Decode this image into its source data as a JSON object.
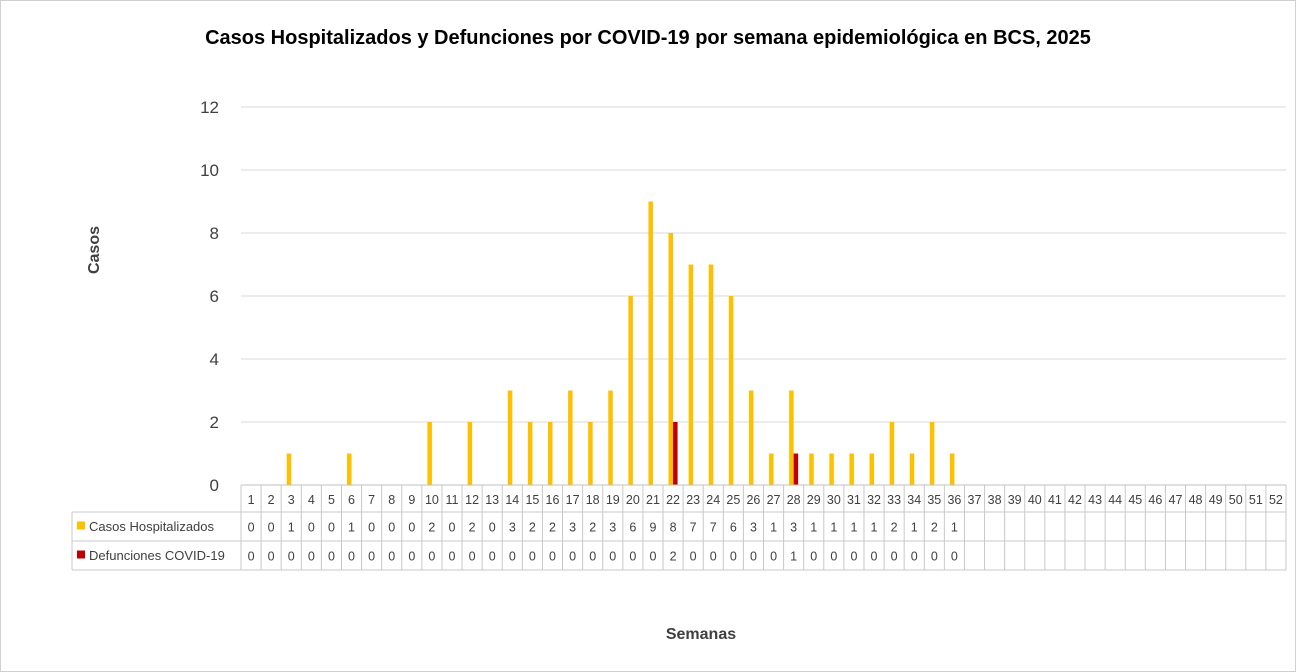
{
  "chart_data": {
    "type": "bar",
    "title": "Casos Hospitalizados y Defunciones por COVID-19 por semana epidemiológica en BCS, 2025",
    "xlabel": "Semanas",
    "ylabel": "Casos",
    "ylim": [
      0,
      12
    ],
    "yticks": [
      0,
      2,
      4,
      6,
      8,
      10,
      12
    ],
    "grid": true,
    "legend_placement": "data-table-left",
    "categories": [
      "1",
      "2",
      "3",
      "4",
      "5",
      "6",
      "7",
      "8",
      "9",
      "10",
      "11",
      "12",
      "13",
      "14",
      "15",
      "16",
      "17",
      "18",
      "19",
      "20",
      "21",
      "22",
      "23",
      "24",
      "25",
      "26",
      "27",
      "28",
      "29",
      "30",
      "31",
      "32",
      "33",
      "34",
      "35",
      "36",
      "37",
      "38",
      "39",
      "40",
      "41",
      "42",
      "43",
      "44",
      "45",
      "46",
      "47",
      "48",
      "49",
      "50",
      "51",
      "52"
    ],
    "series": [
      {
        "name": "Casos Hospitalizados",
        "color": "#FFC000",
        "values": [
          0,
          0,
          1,
          0,
          0,
          1,
          0,
          0,
          0,
          2,
          0,
          2,
          0,
          3,
          2,
          2,
          3,
          2,
          3,
          6,
          9,
          8,
          7,
          7,
          6,
          3,
          1,
          3,
          1,
          1,
          1,
          1,
          2,
          1,
          2,
          1,
          null,
          null,
          null,
          null,
          null,
          null,
          null,
          null,
          null,
          null,
          null,
          null,
          null,
          null,
          null,
          null
        ]
      },
      {
        "name": "Defunciones COVID-19",
        "color": "#C00000",
        "values": [
          0,
          0,
          0,
          0,
          0,
          0,
          0,
          0,
          0,
          0,
          0,
          0,
          0,
          0,
          0,
          0,
          0,
          0,
          0,
          0,
          0,
          2,
          0,
          0,
          0,
          0,
          0,
          1,
          0,
          0,
          0,
          0,
          0,
          0,
          0,
          0,
          null,
          null,
          null,
          null,
          null,
          null,
          null,
          null,
          null,
          null,
          null,
          null,
          null,
          null,
          null,
          null
        ]
      }
    ]
  }
}
